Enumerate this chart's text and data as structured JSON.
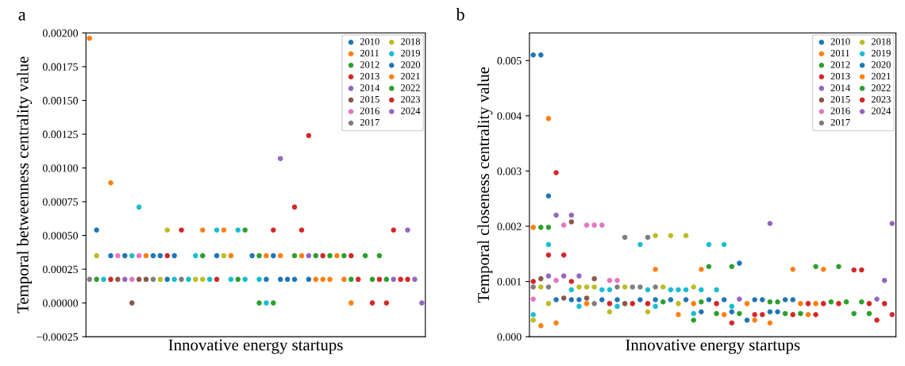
{
  "chart_data": [
    {
      "type": "scatter",
      "title": "a",
      "xlabel": "Innovative energy startups",
      "ylabel": "Temporal betweenness centrality value",
      "categories": [
        null,
        null,
        null,
        null,
        null,
        null,
        null,
        null,
        null,
        null,
        null,
        null,
        null,
        null,
        null,
        null,
        null,
        null,
        null,
        null,
        null,
        null,
        null,
        null,
        null,
        null,
        null,
        null,
        null,
        null,
        null,
        null,
        null,
        null,
        null,
        null,
        null,
        null,
        null,
        null,
        null,
        null,
        null,
        null,
        null,
        null,
        null,
        null
      ],
      "ylim": [
        -0.00025,
        0.002
      ],
      "yticks": [
        {
          "value": -0.00025,
          "label": "−0.00025"
        },
        {
          "value": 0,
          "label": "0.00000"
        },
        {
          "value": 0.00025,
          "label": "0.00025"
        },
        {
          "value": 0.0005,
          "label": "0.00050"
        },
        {
          "value": 0.00075,
          "label": "0.00075"
        },
        {
          "value": 0.001,
          "label": "0.00100"
        },
        {
          "value": 0.00125,
          "label": "0.00125"
        },
        {
          "value": 0.0015,
          "label": "0.00150"
        },
        {
          "value": 0.00175,
          "label": "0.00175"
        },
        {
          "value": 0.002,
          "label": "0.00200"
        }
      ],
      "tick_labels": "y",
      "legend": "top right",
      "marker": "circle",
      "series": [
        {
          "name": "2010",
          "color": "#1f77b4",
          "values": [
            null,
            0.00054,
            null,
            0.00035,
            null,
            0.00035,
            null,
            null,
            null,
            0.00035,
            0.00035,
            0.000175,
            0.00035,
            null,
            null,
            null,
            null,
            null,
            0.00035,
            null,
            null,
            null,
            null,
            0.00035,
            null,
            null,
            null,
            null,
            null,
            null,
            null,
            null,
            null,
            null,
            null,
            null,
            null,
            null,
            null,
            null,
            null,
            null,
            null,
            null,
            null,
            null,
            null,
            null
          ]
        },
        {
          "name": "2011",
          "color": "#ff7f0e",
          "values": [
            0.00196,
            null,
            null,
            0.00089,
            null,
            null,
            null,
            null,
            0.00035,
            null,
            null,
            null,
            null,
            null,
            null,
            null,
            0.00054,
            null,
            null,
            0.00054,
            0.00035,
            null,
            null,
            null,
            null,
            null,
            null,
            null,
            null,
            null,
            null,
            null,
            null,
            null,
            null,
            null,
            null,
            null,
            null,
            null,
            null,
            null,
            null,
            null,
            null,
            null,
            null,
            null
          ]
        },
        {
          "name": "2012",
          "color": "#2ca02c",
          "values": [
            null,
            0.000175,
            null,
            null,
            null,
            null,
            null,
            null,
            null,
            null,
            null,
            null,
            null,
            null,
            null,
            null,
            0.00035,
            null,
            null,
            null,
            null,
            0.000175,
            0.00054,
            null,
            0.00035,
            null,
            null,
            null,
            null,
            null,
            null,
            null,
            null,
            null,
            null,
            null,
            null,
            null,
            null,
            null,
            null,
            null,
            null,
            null,
            null,
            null,
            null,
            null
          ]
        },
        {
          "name": "2013",
          "color": "#d62728",
          "values": [
            null,
            null,
            null,
            0.000175,
            null,
            null,
            null,
            null,
            null,
            null,
            null,
            0.00035,
            null,
            0.00054,
            null,
            null,
            null,
            null,
            0.000175,
            null,
            null,
            null,
            null,
            null,
            null,
            null,
            null,
            null,
            null,
            null,
            null,
            null,
            null,
            null,
            null,
            null,
            null,
            null,
            null,
            null,
            null,
            null,
            null,
            null,
            null,
            null,
            null,
            null
          ]
        },
        {
          "name": "2014",
          "color": "#9467bd",
          "values": [
            null,
            null,
            null,
            null,
            null,
            0.000175,
            null,
            null,
            null,
            null,
            null,
            null,
            null,
            null,
            null,
            null,
            null,
            null,
            null,
            null,
            null,
            null,
            null,
            null,
            null,
            null,
            null,
            null,
            null,
            null,
            null,
            null,
            null,
            null,
            null,
            null,
            null,
            null,
            null,
            null,
            null,
            null,
            null,
            null,
            null,
            null,
            null,
            null
          ]
        },
        {
          "name": "2015",
          "color": "#8c564b",
          "values": [
            null,
            null,
            null,
            null,
            0.000175,
            null,
            0,
            0.000175,
            0.000175,
            null,
            null,
            null,
            null,
            null,
            null,
            null,
            null,
            null,
            null,
            null,
            null,
            null,
            null,
            null,
            null,
            null,
            null,
            null,
            null,
            null,
            null,
            null,
            null,
            null,
            null,
            null,
            null,
            null,
            null,
            null,
            null,
            null,
            null,
            null,
            null,
            null,
            null,
            null
          ]
        },
        {
          "name": "2016",
          "color": "#e377c2",
          "values": [
            null,
            null,
            null,
            null,
            0.00035,
            null,
            0.000175,
            0.00035,
            null,
            null,
            null,
            null,
            null,
            null,
            null,
            null,
            null,
            null,
            null,
            null,
            null,
            null,
            null,
            null,
            null,
            null,
            null,
            null,
            null,
            null,
            null,
            null,
            null,
            null,
            null,
            null,
            null,
            null,
            null,
            null,
            null,
            null,
            null,
            null,
            null,
            null,
            null,
            null
          ]
        },
        {
          "name": "2017",
          "color": "#7f7f7f",
          "values": [
            0.000175,
            null,
            null,
            null,
            null,
            null,
            null,
            null,
            null,
            0.000175,
            null,
            null,
            null,
            0.000175,
            null,
            null,
            null,
            null,
            null,
            null,
            null,
            null,
            null,
            null,
            null,
            null,
            null,
            null,
            null,
            null,
            null,
            null,
            null,
            null,
            null,
            null,
            null,
            null,
            null,
            null,
            null,
            null,
            null,
            null,
            null,
            null,
            null,
            null
          ]
        },
        {
          "name": "2018",
          "color": "#bcbd22",
          "values": [
            null,
            0.00035,
            null,
            null,
            null,
            null,
            null,
            null,
            null,
            null,
            0.000175,
            0.00054,
            null,
            null,
            null,
            0.000175,
            0.000175,
            null,
            null,
            0.00035,
            null,
            null,
            null,
            null,
            null,
            null,
            null,
            null,
            null,
            null,
            null,
            null,
            null,
            null,
            null,
            null,
            null,
            null,
            null,
            null,
            null,
            null,
            null,
            null,
            null,
            null,
            null,
            null
          ]
        },
        {
          "name": "2019",
          "color": "#17becf",
          "values": [
            null,
            null,
            0.000175,
            null,
            null,
            null,
            0.00035,
            0.00071,
            null,
            null,
            null,
            null,
            0.000175,
            null,
            0.000175,
            0.00035,
            null,
            0.000175,
            0.00054,
            null,
            0.000175,
            0.00054,
            0.000175,
            null,
            0.000175,
            0,
            null,
            null,
            null,
            null,
            null,
            null,
            null,
            null,
            null,
            null,
            null,
            null,
            null,
            null,
            null,
            null,
            null,
            null,
            null,
            null,
            null,
            null
          ]
        },
        {
          "name": "2020",
          "color": "#1f77b4",
          "values": [
            null,
            null,
            null,
            null,
            null,
            null,
            null,
            null,
            null,
            null,
            null,
            null,
            null,
            null,
            null,
            null,
            null,
            null,
            null,
            null,
            null,
            null,
            null,
            null,
            null,
            0.000175,
            0.00035,
            0.000175,
            0.000175,
            0.000175,
            null,
            0.000175,
            null,
            null,
            null,
            null,
            null,
            null,
            null,
            null,
            null,
            null,
            null,
            null,
            null,
            null,
            null,
            null
          ]
        },
        {
          "name": "2021",
          "color": "#ff7f0e",
          "values": [
            null,
            null,
            null,
            null,
            null,
            null,
            null,
            null,
            null,
            null,
            null,
            null,
            null,
            null,
            null,
            null,
            null,
            null,
            null,
            null,
            null,
            null,
            null,
            null,
            null,
            0.00035,
            null,
            0.00035,
            null,
            null,
            0.00035,
            null,
            0.000175,
            0.000175,
            0.000175,
            0.00035,
            0.000175,
            0,
            null,
            null,
            null,
            null,
            null,
            null,
            null,
            null,
            null,
            null
          ]
        },
        {
          "name": "2022",
          "color": "#2ca02c",
          "values": [
            null,
            null,
            null,
            null,
            null,
            null,
            null,
            null,
            null,
            null,
            null,
            null,
            null,
            null,
            null,
            null,
            null,
            null,
            null,
            null,
            null,
            null,
            null,
            null,
            0,
            null,
            0,
            null,
            null,
            0.00035,
            null,
            null,
            0.00035,
            null,
            0.00035,
            null,
            0.00035,
            0.000175,
            null,
            0.00035,
            0.000175,
            0.00035,
            0.000175,
            null,
            null,
            null,
            null,
            null
          ]
        },
        {
          "name": "2023",
          "color": "#d62728",
          "values": [
            null,
            null,
            null,
            null,
            null,
            null,
            null,
            null,
            null,
            null,
            null,
            null,
            null,
            null,
            null,
            null,
            null,
            null,
            null,
            null,
            null,
            null,
            null,
            null,
            null,
            null,
            0.00054,
            null,
            null,
            0.00071,
            0.00054,
            0.00124,
            null,
            0.00035,
            null,
            null,
            null,
            0.00035,
            0.000175,
            null,
            0,
            0.000175,
            0,
            0.00054,
            0.000175,
            0.000175,
            null,
            null
          ]
        },
        {
          "name": "2024",
          "color": "#9467bd",
          "values": [
            null,
            null,
            null,
            null,
            null,
            null,
            null,
            null,
            null,
            null,
            null,
            null,
            null,
            null,
            null,
            null,
            null,
            null,
            null,
            null,
            null,
            null,
            null,
            null,
            null,
            null,
            null,
            0.00107,
            null,
            null,
            null,
            0.00035,
            null,
            null,
            null,
            null,
            null,
            null,
            null,
            null,
            null,
            null,
            null,
            0.000175,
            null,
            0.00054,
            0.000175,
            0
          ]
        }
      ]
    },
    {
      "type": "scatter",
      "title": "b",
      "xlabel": "Innovative energy startups",
      "ylabel": "Temporal closeness centrality value",
      "categories": [
        null,
        null,
        null,
        null,
        null,
        null,
        null,
        null,
        null,
        null,
        null,
        null,
        null,
        null,
        null,
        null,
        null,
        null,
        null,
        null,
        null,
        null,
        null,
        null,
        null,
        null,
        null,
        null,
        null,
        null,
        null,
        null,
        null,
        null,
        null,
        null,
        null,
        null,
        null,
        null,
        null,
        null,
        null,
        null,
        null,
        null,
        null,
        null
      ],
      "ylim": [
        0,
        0.0055
      ],
      "yticks": [
        {
          "value": 0,
          "label": "0.000"
        },
        {
          "value": 0.001,
          "label": "0.001"
        },
        {
          "value": 0.002,
          "label": "0.002"
        },
        {
          "value": 0.003,
          "label": "0.003"
        },
        {
          "value": 0.004,
          "label": "0.004"
        },
        {
          "value": 0.005,
          "label": "0.005"
        }
      ],
      "tick_labels": "y",
      "legend": "top right",
      "marker": "circle",
      "series": [
        {
          "name": "2010",
          "color": "#1f77b4",
          "values": [
            0.0051,
            0.0051,
            0.00255,
            0.00067,
            null,
            0.00067,
            0.00067,
            null,
            null,
            0.00067,
            null,
            0.00067,
            null,
            null,
            0.00067,
            null,
            0.00067,
            null,
            0.00067,
            null,
            0.00067,
            null,
            0.00045,
            null,
            null,
            null,
            null,
            null,
            null,
            null,
            null,
            null,
            null,
            null,
            null,
            null,
            null,
            null,
            null,
            null,
            null,
            null,
            null,
            null,
            null,
            null,
            null,
            null
          ]
        },
        {
          "name": "2011",
          "color": "#ff7f0e",
          "values": [
            0.00198,
            0.0002,
            0.00395,
            0.00025,
            null,
            null,
            null,
            0.0006,
            null,
            null,
            null,
            null,
            null,
            null,
            null,
            null,
            0.00122,
            null,
            null,
            0.0004,
            null,
            0.0006,
            0.00122,
            null,
            null,
            null,
            null,
            null,
            null,
            null,
            null,
            null,
            null,
            null,
            null,
            null,
            null,
            null,
            null,
            null,
            null,
            null,
            null,
            null,
            null,
            null,
            null,
            null
          ]
        },
        {
          "name": "2012",
          "color": "#2ca02c",
          "values": [
            null,
            0.00198,
            0.00198,
            null,
            null,
            null,
            null,
            null,
            null,
            null,
            null,
            null,
            null,
            null,
            null,
            null,
            null,
            0.00063,
            null,
            null,
            null,
            0.0003,
            0.00063,
            null,
            null,
            null,
            null,
            null,
            null,
            null,
            null,
            null,
            null,
            null,
            null,
            null,
            null,
            null,
            null,
            null,
            null,
            null,
            null,
            null,
            null,
            null,
            null,
            null
          ]
        },
        {
          "name": "2013",
          "color": "#d62728",
          "values": [
            0.001,
            null,
            0.00148,
            0.00297,
            0.00148,
            0.001,
            null,
            null,
            null,
            null,
            0.0006,
            null,
            null,
            0.0006,
            null,
            0.0006,
            null,
            null,
            null,
            null,
            null,
            null,
            null,
            null,
            null,
            null,
            null,
            null,
            null,
            null,
            null,
            null,
            null,
            null,
            null,
            null,
            null,
            null,
            null,
            null,
            null,
            null,
            null,
            null,
            null,
            null,
            null,
            null
          ]
        },
        {
          "name": "2014",
          "color": "#9467bd",
          "values": [
            null,
            null,
            0.0011,
            0.0022,
            0.0011,
            0.0022,
            0.0011,
            null,
            null,
            null,
            null,
            null,
            null,
            null,
            null,
            null,
            null,
            null,
            null,
            null,
            null,
            null,
            null,
            null,
            null,
            null,
            null,
            null,
            null,
            null,
            null,
            null,
            null,
            null,
            null,
            null,
            null,
            null,
            null,
            null,
            null,
            null,
            null,
            null,
            null,
            null,
            null,
            null
          ]
        },
        {
          "name": "2015",
          "color": "#8c564b",
          "values": [
            null,
            0.00105,
            null,
            null,
            0.0007,
            0.00208,
            null,
            0.0007,
            0.00105,
            null,
            null,
            null,
            0.0006,
            null,
            null,
            null,
            null,
            null,
            null,
            null,
            null,
            null,
            null,
            null,
            null,
            null,
            null,
            null,
            null,
            null,
            null,
            null,
            null,
            null,
            null,
            null,
            null,
            null,
            null,
            null,
            null,
            null,
            null,
            null,
            null,
            null,
            null,
            null
          ]
        },
        {
          "name": "2016",
          "color": "#e377c2",
          "values": [
            0.00068,
            null,
            null,
            0.00102,
            0.00202,
            null,
            null,
            0.00202,
            0.00202,
            0.00202,
            0.00102,
            0.00102,
            null,
            null,
            null,
            null,
            null,
            null,
            null,
            null,
            null,
            null,
            null,
            null,
            null,
            null,
            null,
            null,
            null,
            null,
            null,
            null,
            null,
            null,
            null,
            null,
            null,
            null,
            null,
            null,
            null,
            null,
            null,
            null,
            null,
            null,
            null,
            null
          ]
        },
        {
          "name": "2017",
          "color": "#7f7f7f",
          "values": [
            0.0009,
            null,
            0.0009,
            null,
            null,
            null,
            null,
            null,
            0.0006,
            null,
            null,
            0.0009,
            0.0018,
            0.0009,
            0.0009,
            0.0018,
            0.0009,
            null,
            null,
            null,
            null,
            null,
            null,
            null,
            null,
            null,
            null,
            null,
            null,
            null,
            null,
            null,
            null,
            null,
            null,
            null,
            null,
            null,
            null,
            null,
            null,
            null,
            null,
            null,
            null,
            null,
            null,
            null
          ]
        },
        {
          "name": "2018",
          "color": "#bcbd22",
          "values": [
            0.0003,
            0.0009,
            0.0006,
            null,
            null,
            null,
            0.0009,
            0.0009,
            0.0009,
            null,
            0.00045,
            null,
            0.0009,
            null,
            null,
            0.00045,
            0.00183,
            0.0009,
            0.00183,
            0.0006,
            0.00183,
            0.0009,
            null,
            null,
            null,
            null,
            null,
            null,
            null,
            null,
            null,
            null,
            null,
            null,
            null,
            null,
            null,
            null,
            null,
            null,
            null,
            null,
            null,
            null,
            null,
            null,
            null,
            null
          ]
        },
        {
          "name": "2019",
          "color": "#17becf",
          "values": [
            0.0004,
            null,
            0.00167,
            null,
            null,
            0.00085,
            0.00055,
            null,
            null,
            0.00085,
            0.00085,
            0.00055,
            null,
            null,
            0.00167,
            0.00085,
            0.00055,
            null,
            0.00085,
            0.00085,
            0.00085,
            0.00042,
            0.00085,
            0.00167,
            0.00085,
            0.00167,
            0.00055,
            null,
            null,
            null,
            null,
            null,
            null,
            null,
            null,
            null,
            null,
            null,
            null,
            null,
            null,
            null,
            null,
            null,
            null,
            null,
            null,
            null
          ]
        },
        {
          "name": "2020",
          "color": "#1f77b4",
          "values": [
            null,
            null,
            null,
            null,
            null,
            null,
            null,
            null,
            null,
            null,
            null,
            null,
            null,
            null,
            null,
            null,
            null,
            null,
            null,
            null,
            null,
            null,
            null,
            0.00067,
            null,
            0.00067,
            0.00045,
            0.00133,
            0.0003,
            0.00067,
            0.00067,
            0.00045,
            0.00045,
            0.00067,
            0.00067,
            null,
            null,
            null,
            null,
            null,
            null,
            null,
            null,
            null,
            null,
            null,
            null,
            null
          ]
        },
        {
          "name": "2021",
          "color": "#ff7f0e",
          "values": [
            null,
            null,
            null,
            null,
            null,
            null,
            null,
            null,
            null,
            null,
            null,
            null,
            null,
            null,
            null,
            null,
            null,
            null,
            null,
            null,
            null,
            null,
            null,
            null,
            null,
            0.0004,
            null,
            null,
            0.0006,
            0.0003,
            null,
            0.00025,
            null,
            null,
            0.00122,
            0.0006,
            0.0004,
            0.0006,
            0.00122,
            null,
            null,
            null,
            null,
            null,
            null,
            null,
            null,
            null
          ]
        },
        {
          "name": "2022",
          "color": "#2ca02c",
          "values": [
            null,
            null,
            null,
            null,
            null,
            null,
            null,
            null,
            null,
            null,
            null,
            null,
            null,
            null,
            null,
            null,
            null,
            null,
            null,
            null,
            null,
            null,
            null,
            0.00127,
            0.00042,
            null,
            0.00127,
            0.00042,
            null,
            null,
            null,
            0.00063,
            0.00063,
            0.00042,
            null,
            0.00042,
            null,
            0.00127,
            null,
            0.00063,
            0.00127,
            0.00063,
            0.00042,
            0.00063,
            0.00042,
            null,
            null,
            null
          ]
        },
        {
          "name": "2023",
          "color": "#d62728",
          "values": [
            null,
            null,
            null,
            null,
            null,
            null,
            null,
            null,
            null,
            null,
            null,
            null,
            null,
            null,
            null,
            null,
            null,
            null,
            null,
            null,
            null,
            null,
            null,
            null,
            0.0006,
            null,
            0.00025,
            null,
            null,
            0.0004,
            0.0004,
            null,
            null,
            null,
            0.0004,
            null,
            0.0006,
            0.0004,
            0.0006,
            null,
            0.0006,
            null,
            0.00121,
            0.00121,
            0.0006,
            0.0003,
            0.0006,
            0.0004
          ]
        },
        {
          "name": "2024",
          "color": "#9467bd",
          "values": [
            null,
            null,
            null,
            null,
            null,
            null,
            null,
            null,
            null,
            null,
            null,
            null,
            null,
            null,
            null,
            null,
            null,
            null,
            null,
            null,
            null,
            null,
            null,
            null,
            null,
            null,
            null,
            0.00068,
            null,
            null,
            null,
            0.00205,
            null,
            null,
            null,
            null,
            null,
            null,
            null,
            null,
            null,
            null,
            null,
            null,
            null,
            0.00068,
            0.00102,
            0.00205
          ]
        }
      ]
    }
  ]
}
